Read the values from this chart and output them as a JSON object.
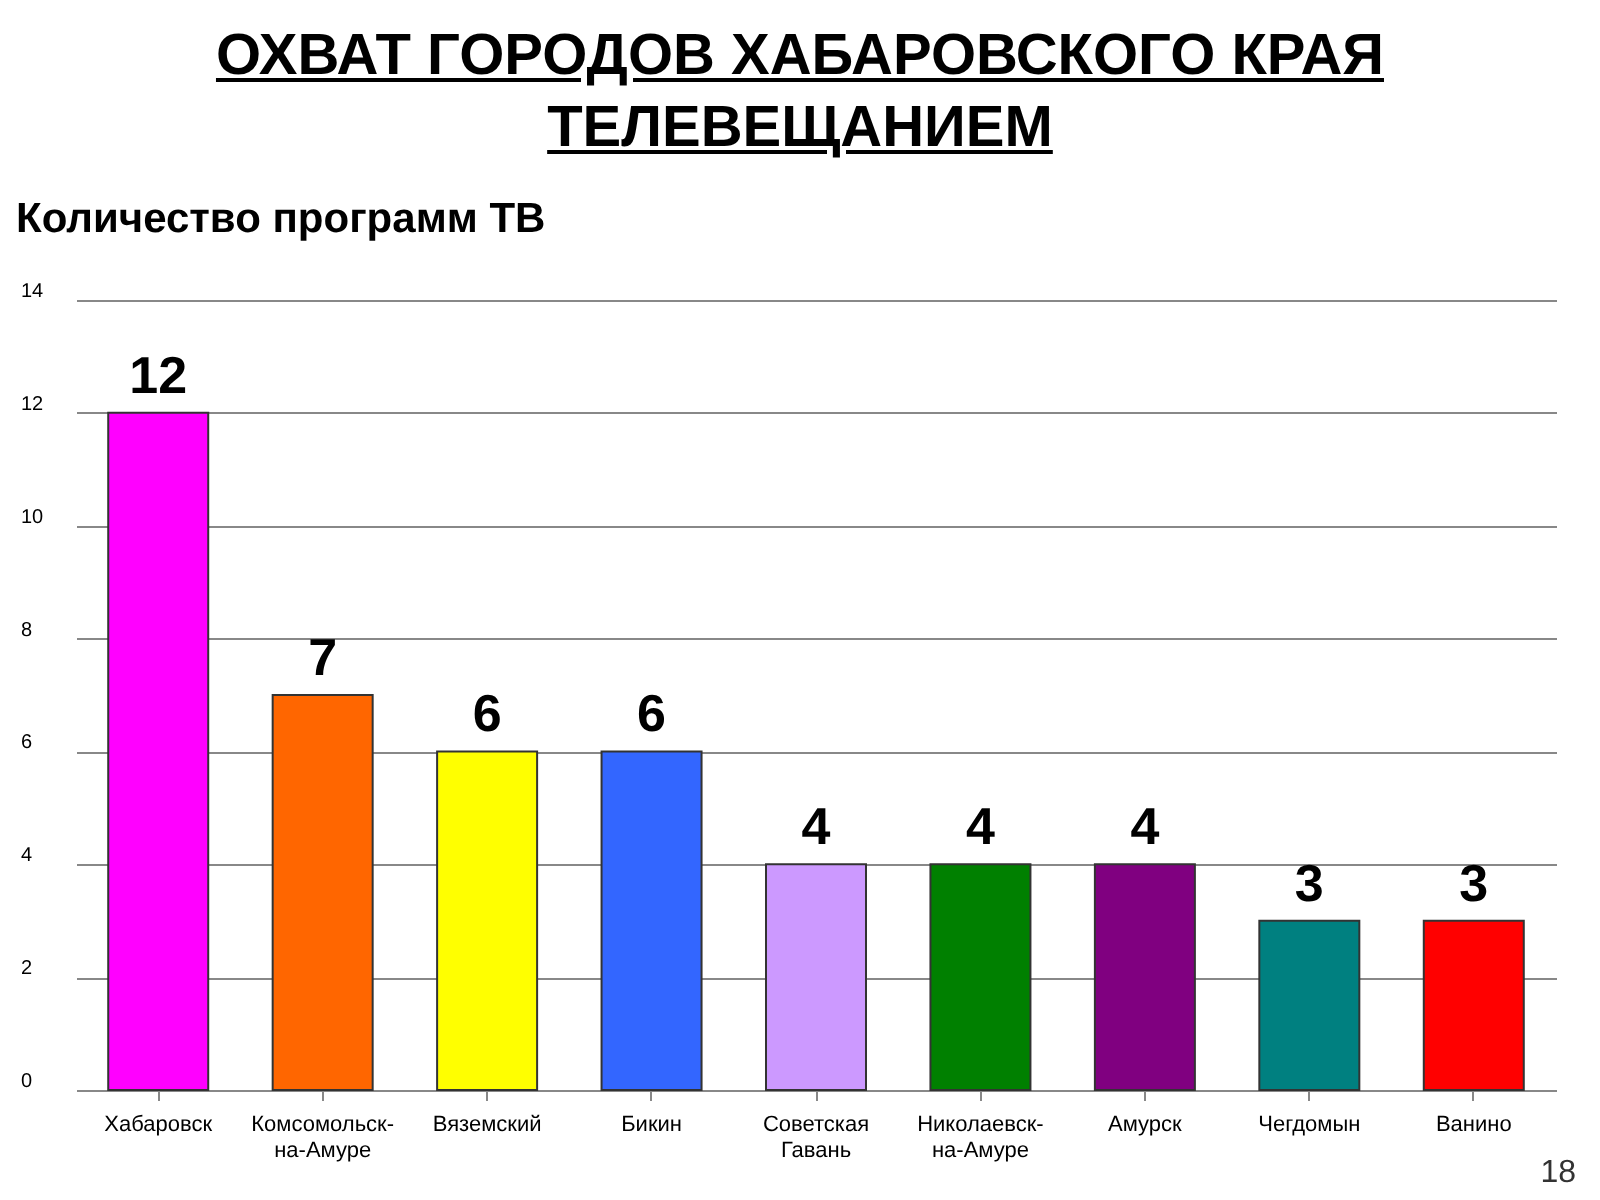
{
  "chart_data": {
    "type": "bar",
    "title": "ОХВАТ ГОРОДОВ ХАБАРОВСКОГО КРАЯ ТЕЛЕВЕЩАНИЕМ",
    "subtitle": "Количество программ ТВ",
    "categories": [
      "Хабаровск",
      "Комсомольск-на-Амуре",
      "Вяземский",
      "Бикин",
      "Советская Гавань",
      "Николаевск-на-Амуре",
      "Амурск",
      "Чегдомын",
      "Ванино"
    ],
    "values": [
      12,
      7,
      6,
      6,
      4,
      4,
      4,
      3,
      3
    ],
    "colors": [
      "#ff00ff",
      "#ff6600",
      "#ffff00",
      "#3366ff",
      "#cc99ff",
      "#008000",
      "#800080",
      "#008080",
      "#ff0000"
    ],
    "ylim": [
      0,
      14
    ],
    "yticks": [
      0,
      2,
      4,
      6,
      8,
      10,
      12,
      14
    ],
    "grid": "y",
    "data_labels": true,
    "annotations": [
      "18"
    ]
  }
}
